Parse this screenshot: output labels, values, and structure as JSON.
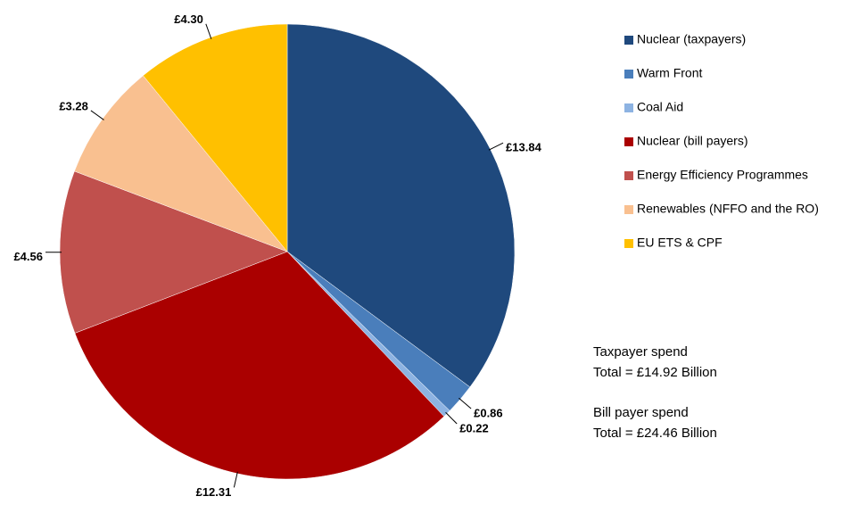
{
  "chart_data": {
    "type": "pie",
    "categories": [
      "Nuclear (taxpayers)",
      "Warm Front",
      "Coal Aid",
      "Nuclear (bill payers)",
      "Energy Efficiency Programmes",
      "Renewables (NFFO and the RO)",
      "EU ETS & CPF"
    ],
    "values": [
      13.84,
      0.86,
      0.22,
      12.31,
      4.56,
      3.28,
      4.3
    ],
    "value_labels": [
      "£13.84",
      "£0.86",
      "£0.22",
      "£12.31",
      "£4.56",
      "£3.28",
      "£4.30"
    ],
    "colors": [
      "#1f497d",
      "#4a7ebb",
      "#8db3e2",
      "#aa0000",
      "#c0504d",
      "#f9c090",
      "#ffc000"
    ],
    "legend": "right",
    "annotations": [
      "Taxpayer spend",
      "Total = £14.92 Billion",
      "Bill payer spend",
      "Total = £24.46 Billion"
    ]
  }
}
